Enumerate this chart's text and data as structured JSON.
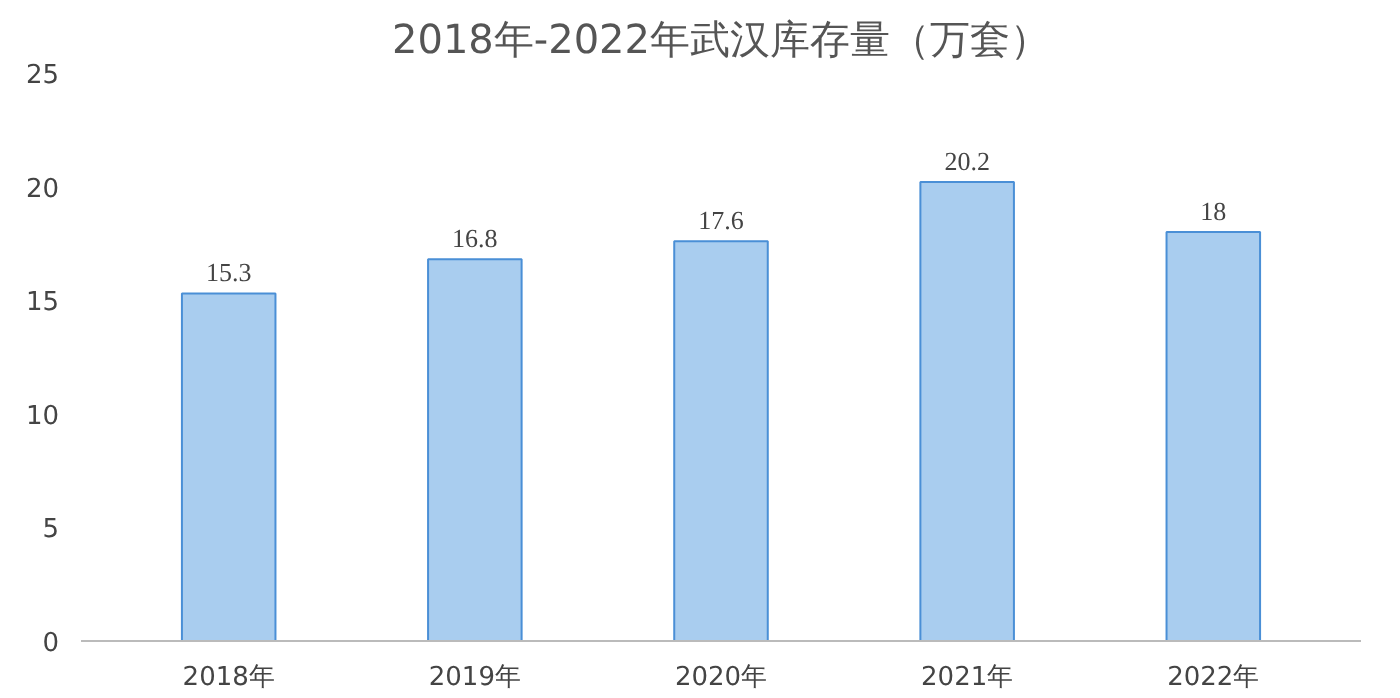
{
  "chart_data": {
    "type": "bar",
    "title": "2018年-2022年武汉库存量（万套）",
    "categories": [
      "2018年",
      "2019年",
      "2020年",
      "2021年",
      "2022年"
    ],
    "values": [
      15.3,
      16.8,
      17.6,
      20.2,
      18
    ],
    "color": "#a9cdef",
    "ylim": [
      0,
      25
    ],
    "yticks": [
      0,
      5,
      10,
      15,
      20,
      25
    ],
    "grid": false,
    "data_labels": true
  }
}
